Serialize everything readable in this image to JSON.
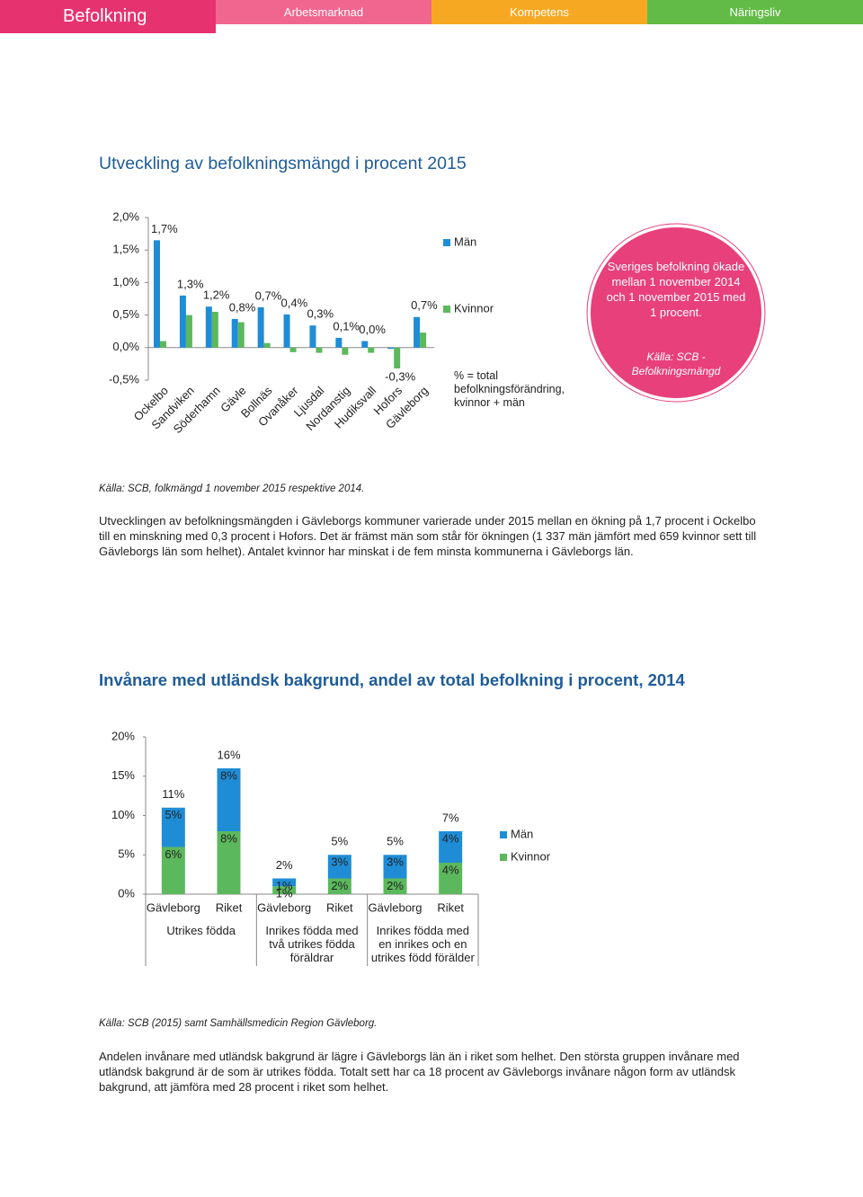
{
  "nav": [
    "Befolkning",
    "Arbetsmarknad",
    "Kompetens",
    "Näringsliv"
  ],
  "section1": {
    "heading": "Utveckling av befolkningsmängd i procent 2015",
    "source": "Källa: SCB, folkmängd 1 november 2015 respektive 2014.",
    "paragraph": "Utvecklingen av befolkningsmängden i Gävleborgs kommuner varierade under 2015 mellan en ökning på 1,7 procent i Ockelbo till en minskning med 0,3 procent i Hofors. Det är främst män som står för ökningen (1 337 män jämfört med 659 kvinnor sett till Gävleborgs län som helhet). Antalet kvinnor har minskat i de fem minsta kommunerna i Gävleborgs län."
  },
  "callout": {
    "text": "Sveriges befolkning ökade mellan 1 november 2014 och 1 november 2015 med 1 procent.",
    "source": "Källa: SCB - Befolkningsmängd"
  },
  "section2": {
    "heading": "Invånare med utländsk bakgrund, andel av total befolkning i procent, 2014",
    "source": "Källa: SCB (2015) samt Samhällsmedicin Region Gävleborg.",
    "paragraph": "Andelen invånare med utländsk bakgrund är lägre i Gävleborgs län än i riket som helhet. Den största gruppen invånare med utländsk bakgrund är de som är utrikes födda. Totalt sett har ca 18 procent av Gävleborgs invånare någon form av utländsk bakgrund, att jämföra med 28 procent i riket som helhet."
  },
  "chart_data": [
    {
      "type": "bar",
      "categories": [
        "Ockelbo",
        "Sandviken",
        "Söderhamn",
        "Gävle",
        "Bollnäs",
        "Ovanåker",
        "Ljusdal",
        "Nordanstig",
        "Hudiksvall",
        "Hofors",
        "Gävleborg"
      ],
      "series": [
        {
          "name": "Män",
          "color": "#1f8dd6",
          "values": [
            1.65,
            0.8,
            0.63,
            0.44,
            0.62,
            0.51,
            0.34,
            0.15,
            0.1,
            -0.02,
            0.47
          ]
        },
        {
          "name": "Kvinnor",
          "color": "#5cb85c",
          "values": [
            0.1,
            0.5,
            0.55,
            0.39,
            0.07,
            -0.07,
            -0.08,
            -0.11,
            -0.08,
            -0.32,
            0.23
          ]
        }
      ],
      "totals": {
        "values": [
          1.7,
          1.3,
          1.2,
          0.8,
          0.7,
          0.4,
          0.3,
          0.1,
          0.0,
          -0.3,
          0.7
        ],
        "value_labels": [
          "1,7%",
          "1,3%",
          "1,2%",
          "0,8%",
          "0,7%",
          "0,4%",
          "0,3%",
          "0,1%",
          "0,0%",
          "-0,3%",
          "0,7%"
        ]
      },
      "legend_note": "% = total befolkningsförändring, kvinnor + män",
      "ylim": [
        -0.5,
        2.0
      ],
      "yticks": [
        {
          "value": -0.5,
          "label": "-0,5%"
        },
        {
          "value": 0,
          "label": "0,0%"
        },
        {
          "value": 0.5,
          "label": "0,5%"
        },
        {
          "value": 1,
          "label": "1,0%"
        },
        {
          "value": 1.5,
          "label": "1,5%"
        },
        {
          "value": 2,
          "label": "2,0%"
        }
      ],
      "grid": false
    },
    {
      "type": "stacked_bar",
      "categories": [
        "Gävleborg",
        "Riket",
        "Gävleborg",
        "Riket",
        "Gävleborg",
        "Riket"
      ],
      "groups": [
        "Utrikes födda",
        "Inrikes födda med två utrikes födda föräldrar",
        "Inrikes födda med en inrikes och en utrikes född förälder"
      ],
      "series": [
        {
          "name": "Män",
          "color": "#1f8dd6",
          "values": [
            5,
            8,
            1,
            3,
            3,
            4
          ],
          "value_labels": [
            "5%",
            "8%",
            "1%",
            "3%",
            "3%",
            "4%"
          ]
        },
        {
          "name": "Kvinnor",
          "color": "#5cb85c",
          "values": [
            6,
            8,
            1,
            2,
            2,
            4
          ],
          "value_labels": [
            "6%",
            "8%",
            "1%",
            "2%",
            "2%",
            "4%"
          ]
        }
      ],
      "totals": {
        "values": [
          11,
          16,
          2,
          5,
          5,
          7
        ],
        "value_labels": [
          "11%",
          "16%",
          "2%",
          "5%",
          "5%",
          "7%"
        ]
      },
      "ylim": [
        0,
        20
      ],
      "yticks": [
        {
          "value": 0,
          "label": "0%"
        },
        {
          "value": 5,
          "label": "5%"
        },
        {
          "value": 10,
          "label": "10%"
        },
        {
          "value": 15,
          "label": "15%"
        },
        {
          "value": 20,
          "label": "20%"
        }
      ],
      "grid": false
    }
  ]
}
